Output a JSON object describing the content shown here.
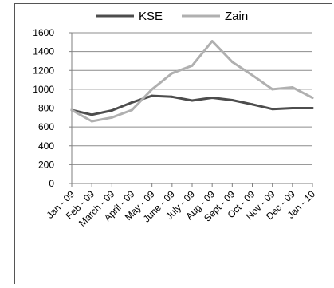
{
  "chart_data": {
    "type": "line",
    "title": "",
    "xlabel": "",
    "ylabel": "",
    "categories": [
      "Jan - 09",
      "Feb - 09",
      "March - 09",
      "April - 09",
      "May - 09",
      "June - 09",
      "July - 09",
      "Aug - 09",
      "Sept - 09",
      "Oct - 09",
      "Nov - 09",
      "Dec - 09",
      "Jan - 10"
    ],
    "ylim": [
      0,
      1600
    ],
    "yticks": [
      0,
      200,
      400,
      600,
      800,
      1000,
      1200,
      1400,
      1600
    ],
    "grid": true,
    "legend": "top",
    "series": [
      {
        "name": "KSE",
        "color": "#4d4d4d",
        "values": [
          780,
          730,
          775,
          860,
          930,
          920,
          880,
          910,
          885,
          840,
          790,
          800,
          800
        ]
      },
      {
        "name": "Zain",
        "color": "#b0b0b0",
        "values": [
          780,
          660,
          700,
          780,
          1000,
          1170,
          1250,
          1510,
          1290,
          1150,
          1000,
          1020,
          910
        ]
      }
    ]
  }
}
